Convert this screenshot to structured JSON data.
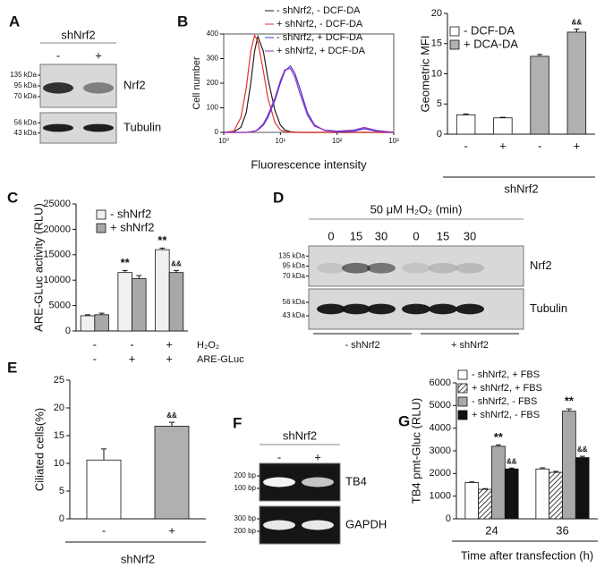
{
  "panel_labels": [
    "A",
    "B",
    "C",
    "D",
    "E",
    "F",
    "G"
  ],
  "blots": [
    {
      "header": "shNrf2",
      "lanes": [
        "-",
        "+"
      ],
      "rows": [
        {
          "label": "Nrf2",
          "markers": [
            "135 kDa",
            "95 kDa",
            "70 kDa"
          ]
        },
        {
          "label": "Tubulin",
          "markers": [
            "56 kDa",
            "43 kDa"
          ]
        }
      ]
    },
    {
      "header": "50 μM H₂O₂ (min)",
      "lanes": [
        "0",
        "15",
        "30",
        "0",
        "15",
        "30"
      ],
      "groups": [
        "- shNrf2",
        "+ shNrf2"
      ],
      "rows": [
        {
          "label": "Nrf2",
          "markers": [
            "135 kDa",
            "95 kDa",
            "70 kDa"
          ]
        },
        {
          "label": "Tubulin",
          "markers": [
            "56 kDa",
            "43 kDa"
          ]
        }
      ]
    },
    {
      "header": "shNrf2",
      "lanes": [
        "-",
        "+"
      ],
      "rows": [
        {
          "label": "TB4",
          "markers": [
            "200 bp",
            "100 bp"
          ]
        },
        {
          "label": "GAPDH",
          "markers": [
            "300 bp",
            "200 bp"
          ]
        }
      ]
    }
  ],
  "chart_data": [
    {
      "type": "line",
      "ylabel": "Cell number",
      "xlabel": "Fluorescence intensity",
      "log_x": true,
      "x": [
        1,
        1.5,
        2,
        2.5,
        3,
        3.5,
        4,
        5,
        6,
        8,
        10,
        12,
        15,
        18,
        22,
        30,
        40,
        60,
        100,
        200,
        300,
        500,
        1000
      ],
      "xlim": [
        1,
        1000
      ],
      "xticks": [
        {
          "value": 1,
          "label": "10⁰"
        },
        {
          "value": 10,
          "label": "10¹"
        },
        {
          "value": 100,
          "label": "10²"
        },
        {
          "value": 1000,
          "label": "10³"
        }
      ],
      "ylim": [
        0,
        400
      ],
      "yticks": [
        0,
        100,
        200,
        300,
        400
      ],
      "series": [
        {
          "name": "- shNrf2, - DCF-DA",
          "color": "#222222",
          "values": [
            0,
            2,
            20,
            80,
            200,
            330,
            390,
            330,
            220,
            90,
            30,
            10,
            3,
            1,
            0,
            0,
            0,
            0,
            0,
            0,
            0,
            0,
            0
          ]
        },
        {
          "name": "+ shNrf2, - DCF-DA",
          "color": "#e8302a",
          "values": [
            0,
            5,
            60,
            180,
            330,
            395,
            370,
            250,
            140,
            40,
            10,
            3,
            1,
            0,
            0,
            0,
            0,
            0,
            0,
            0,
            0,
            0,
            0
          ]
        },
        {
          "name": "- shNrf2, + DCF-DA",
          "color": "#3a3ad8",
          "values": [
            0,
            0,
            0,
            0,
            2,
            5,
            10,
            30,
            60,
            130,
            200,
            250,
            270,
            240,
            180,
            80,
            30,
            8,
            2,
            5,
            15,
            5,
            0
          ]
        },
        {
          "name": "+ shNrf2, + DCF-DA",
          "color": "#a030c0",
          "values": [
            0,
            0,
            0,
            0,
            2,
            5,
            12,
            35,
            70,
            140,
            210,
            255,
            260,
            225,
            160,
            70,
            25,
            10,
            5,
            10,
            20,
            8,
            0
          ]
        }
      ]
    },
    {
      "type": "bar",
      "ylabel": "Geometric MFI",
      "xlabel": "shNrf2",
      "categories": [
        "-",
        "+",
        "-",
        "+"
      ],
      "ylim": [
        0,
        20
      ],
      "yticks": [
        0,
        5,
        10,
        15,
        20
      ],
      "legend": [
        {
          "name": "- DCF-DA",
          "color": "#ffffff"
        },
        {
          "name": "+ DCA-DA",
          "color": "#b0b0b0"
        }
      ],
      "series": [
        {
          "values": [
            3.2,
            2.7,
            12.9,
            16.9
          ],
          "errors": [
            0.15,
            0.1,
            0.3,
            0.5
          ],
          "colors": [
            "#ffffff",
            "#ffffff",
            "#b0b0b0",
            "#b0b0b0"
          ],
          "marks": [
            null,
            null,
            null,
            "&&"
          ]
        }
      ]
    },
    {
      "type": "bar",
      "ylabel": "ARE-GLuc activity (RLU)",
      "categories": [
        null,
        null,
        null
      ],
      "ylim": [
        0,
        25000
      ],
      "yticks": [
        0,
        5000,
        10000,
        15000,
        20000,
        25000
      ],
      "condition_rows": [
        {
          "label": "H₂O₂",
          "values": [
            "-",
            "-",
            "+"
          ]
        },
        {
          "label": "ARE-GLuc",
          "values": [
            "-",
            "+",
            "+"
          ]
        }
      ],
      "series": [
        {
          "name": "- shNrf2",
          "color": "#f0f0f0",
          "values": [
            3000,
            11500,
            16000
          ],
          "errors": [
            200,
            400,
            300
          ],
          "marks": [
            null,
            "**",
            "**"
          ]
        },
        {
          "name": "+ shNrf2",
          "color": "#a8a8a8",
          "values": [
            3200,
            10300,
            11500
          ],
          "errors": [
            300,
            600,
            400
          ],
          "marks": [
            null,
            null,
            "&&"
          ]
        }
      ]
    },
    {
      "type": "bar",
      "ylabel": "Ciliated cells(%)",
      "xlabel": "shNrf2",
      "categories": [
        "-",
        "+"
      ],
      "ylim": [
        0,
        25
      ],
      "yticks": [
        0,
        5,
        10,
        15,
        20,
        25
      ],
      "series": [
        {
          "values": [
            10.6,
            16.7
          ],
          "errors": [
            2,
            0.7
          ],
          "colors": [
            "#ffffff",
            "#b0b0b0"
          ],
          "marks": [
            null,
            "&&"
          ]
        }
      ]
    },
    {
      "type": "bar",
      "ylabel": "TB4 pmt-Gluc (RLU)",
      "xlabel": "Time after transfection (h)",
      "categories": [
        "24",
        "36"
      ],
      "ylim": [
        0,
        6000
      ],
      "yticks": [
        0,
        1000,
        2000,
        3000,
        4000,
        5000,
        6000
      ],
      "series": [
        {
          "name": "- shNrf2, + FBS",
          "color": "#ffffff",
          "values": [
            1600,
            2200
          ],
          "errors": [
            30,
            50
          ],
          "marks": [
            null,
            null
          ]
        },
        {
          "name": "+ shNrf2, + FBS",
          "color": "#ffffff",
          "pattern": "hatch",
          "values": [
            1300,
            2050
          ],
          "errors": [
            30,
            40
          ],
          "marks": [
            null,
            null
          ]
        },
        {
          "name": "- shNrf2, - FBS",
          "color": "#a8a8a8",
          "values": [
            3200,
            4750
          ],
          "errors": [
            60,
            100
          ],
          "marks": [
            "**",
            "**"
          ]
        },
        {
          "name": "+ shNrf2, - FBS",
          "color": "#111111",
          "values": [
            2200,
            2700
          ],
          "errors": [
            40,
            60
          ],
          "marks": [
            "&&",
            "&&"
          ]
        }
      ]
    }
  ]
}
